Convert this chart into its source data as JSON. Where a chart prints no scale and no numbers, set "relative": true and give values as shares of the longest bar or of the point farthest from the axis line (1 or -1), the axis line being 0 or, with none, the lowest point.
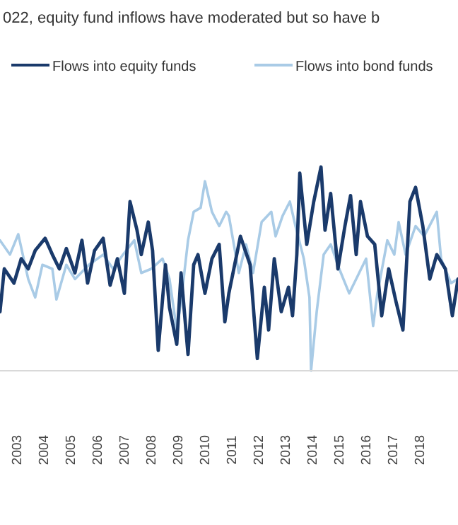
{
  "chart_data": {
    "type": "line",
    "title": "022, equity fund inflows have moderated but so have b",
    "relative": true,
    "legend": "top",
    "grid": false,
    "xlim": [
      2002.37,
      2019.42
    ],
    "xticks": [
      2003,
      2004,
      2005,
      2006,
      2007,
      2008,
      2009,
      2010,
      2011,
      2012,
      2013,
      2014,
      2015,
      2016,
      2017,
      2018
    ],
    "series": [
      {
        "name": "Flows into equity funds",
        "color": "#1a3a6b",
        "x": [
          2002.37,
          2002.53,
          2002.89,
          2003.16,
          2003.42,
          2003.68,
          2004.05,
          2004.32,
          2004.58,
          2004.84,
          2005.16,
          2005.42,
          2005.63,
          2005.89,
          2006.21,
          2006.47,
          2006.74,
          2007.0,
          2007.21,
          2007.47,
          2007.63,
          2007.89,
          2008.05,
          2008.26,
          2008.53,
          2008.68,
          2008.95,
          2009.11,
          2009.37,
          2009.58,
          2009.74,
          2010.0,
          2010.26,
          2010.53,
          2010.74,
          2010.89,
          2011.32,
          2011.68,
          2011.95,
          2012.21,
          2012.37,
          2012.58,
          2012.84,
          2013.11,
          2013.26,
          2013.42,
          2013.53,
          2013.79,
          2014.05,
          2014.32,
          2014.47,
          2014.68,
          2014.95,
          2015.21,
          2015.42,
          2015.63,
          2015.79,
          2016.05,
          2016.32,
          2016.58,
          2016.84,
          2017.11,
          2017.37,
          2017.63,
          2017.84,
          2018.11,
          2018.37,
          2018.63,
          2018.95,
          2019.21,
          2019.42
        ],
        "values": [
          0.29,
          0.5,
          0.43,
          0.55,
          0.5,
          0.59,
          0.65,
          0.57,
          0.5,
          0.6,
          0.48,
          0.64,
          0.43,
          0.59,
          0.65,
          0.42,
          0.55,
          0.38,
          0.83,
          0.69,
          0.57,
          0.73,
          0.59,
          0.1,
          0.52,
          0.31,
          0.13,
          0.48,
          0.08,
          0.52,
          0.57,
          0.38,
          0.55,
          0.62,
          0.24,
          0.38,
          0.66,
          0.52,
          0.06,
          0.41,
          0.2,
          0.55,
          0.29,
          0.41,
          0.27,
          0.57,
          0.97,
          0.62,
          0.83,
          1,
          0.69,
          0.87,
          0.5,
          0.71,
          0.86,
          0.57,
          0.83,
          0.66,
          0.62,
          0.27,
          0.5,
          0.34,
          0.2,
          0.83,
          0.9,
          0.71,
          0.45,
          0.57,
          0.5,
          0.27,
          0.45
        ]
      },
      {
        "name": "Flows into bond funds",
        "color": "#a9cbe6",
        "x": [
          2002.37,
          2002.74,
          2003.05,
          2003.42,
          2003.68,
          2003.95,
          2004.32,
          2004.47,
          2004.84,
          2005.16,
          2005.68,
          2006.21,
          2006.58,
          2006.95,
          2007.37,
          2007.63,
          2008.0,
          2008.42,
          2008.68,
          2008.95,
          2009.11,
          2009.37,
          2009.58,
          2009.84,
          2010.0,
          2010.26,
          2010.53,
          2010.79,
          2010.89,
          2011.26,
          2011.53,
          2011.79,
          2012.11,
          2012.47,
          2012.63,
          2012.89,
          2013.16,
          2013.37,
          2013.68,
          2013.89,
          2013.95,
          2014.16,
          2014.42,
          2014.68,
          2015.0,
          2015.37,
          2015.74,
          2016.0,
          2016.26,
          2016.42,
          2016.79,
          2017.05,
          2017.21,
          2017.47,
          2017.84,
          2018.16,
          2018.63,
          2018.79,
          2019.16,
          2019.42
        ],
        "values": [
          0.64,
          0.57,
          0.67,
          0.45,
          0.36,
          0.52,
          0.5,
          0.35,
          0.52,
          0.45,
          0.52,
          0.57,
          0.5,
          0.57,
          0.64,
          0.48,
          0.5,
          0.55,
          0.45,
          0.2,
          0.34,
          0.64,
          0.78,
          0.8,
          0.93,
          0.78,
          0.71,
          0.78,
          0.76,
          0.48,
          0.62,
          0.48,
          0.73,
          0.78,
          0.66,
          0.76,
          0.83,
          0.71,
          0.55,
          0.36,
          0,
          0.29,
          0.57,
          0.62,
          0.5,
          0.38,
          0.48,
          0.55,
          0.22,
          0.38,
          0.64,
          0.57,
          0.73,
          0.57,
          0.71,
          0.66,
          0.78,
          0.55,
          0.43,
          0.45
        ]
      }
    ]
  }
}
